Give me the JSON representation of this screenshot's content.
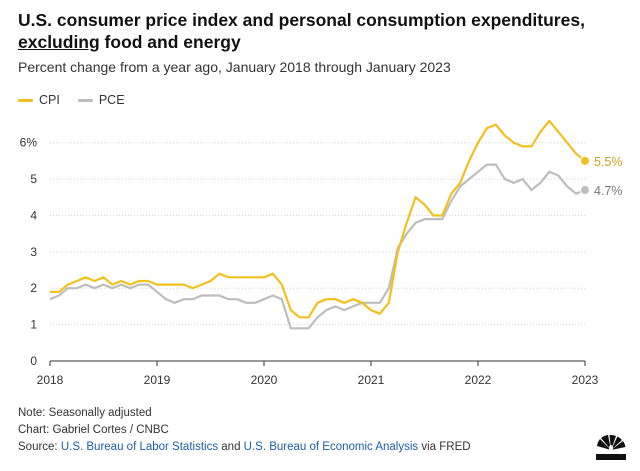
{
  "header": {
    "title_line1": "U.S. consumer price index and personal consumption expenditures,",
    "title_underlined": "excluding",
    "title_rest": " food and energy",
    "subtitle": "Percent change from a year ago, January 2018 through January 2023"
  },
  "colors": {
    "cpi": "#f2c01e",
    "pce": "#bdbdbd",
    "end_label_cpi": "#c9a227",
    "end_label_pce": "#777777",
    "link": "#1a5fa8"
  },
  "chart_data": {
    "type": "line",
    "x": [
      "2018-01",
      "2018-02",
      "2018-03",
      "2018-04",
      "2018-05",
      "2018-06",
      "2018-07",
      "2018-08",
      "2018-09",
      "2018-10",
      "2018-11",
      "2018-12",
      "2019-01",
      "2019-02",
      "2019-03",
      "2019-04",
      "2019-05",
      "2019-06",
      "2019-07",
      "2019-08",
      "2019-09",
      "2019-10",
      "2019-11",
      "2019-12",
      "2020-01",
      "2020-02",
      "2020-03",
      "2020-04",
      "2020-05",
      "2020-06",
      "2020-07",
      "2020-08",
      "2020-09",
      "2020-10",
      "2020-11",
      "2020-12",
      "2021-01",
      "2021-02",
      "2021-03",
      "2021-04",
      "2021-05",
      "2021-06",
      "2021-07",
      "2021-08",
      "2021-09",
      "2021-10",
      "2021-11",
      "2021-12",
      "2022-01",
      "2022-02",
      "2022-03",
      "2022-04",
      "2022-05",
      "2022-06",
      "2022-07",
      "2022-08",
      "2022-09",
      "2022-10",
      "2022-11",
      "2022-12",
      "2023-01"
    ],
    "series": [
      {
        "name": "CPI",
        "values": [
          1.9,
          1.9,
          2.1,
          2.2,
          2.3,
          2.2,
          2.3,
          2.1,
          2.2,
          2.1,
          2.2,
          2.2,
          2.1,
          2.1,
          2.1,
          2.1,
          2.0,
          2.1,
          2.2,
          2.4,
          2.3,
          2.3,
          2.3,
          2.3,
          2.3,
          2.4,
          2.1,
          1.4,
          1.2,
          1.2,
          1.6,
          1.7,
          1.7,
          1.6,
          1.7,
          1.6,
          1.4,
          1.3,
          1.6,
          3.0,
          3.8,
          4.5,
          4.3,
          4.0,
          4.0,
          4.6,
          4.9,
          5.5,
          6.0,
          6.4,
          6.5,
          6.2,
          6.0,
          5.9,
          5.9,
          6.3,
          6.6,
          6.3,
          6.0,
          5.7,
          5.5
        ]
      },
      {
        "name": "PCE",
        "values": [
          1.7,
          1.8,
          2.0,
          2.0,
          2.1,
          2.0,
          2.1,
          2.0,
          2.1,
          2.0,
          2.1,
          2.1,
          1.9,
          1.7,
          1.6,
          1.7,
          1.7,
          1.8,
          1.8,
          1.8,
          1.7,
          1.7,
          1.6,
          1.6,
          1.7,
          1.8,
          1.7,
          0.9,
          0.9,
          0.9,
          1.2,
          1.4,
          1.5,
          1.4,
          1.5,
          1.6,
          1.6,
          1.6,
          2.0,
          3.1,
          3.5,
          3.8,
          3.9,
          3.9,
          3.9,
          4.4,
          4.8,
          5.0,
          5.2,
          5.4,
          5.4,
          5.0,
          4.9,
          5.0,
          4.7,
          4.9,
          5.2,
          5.1,
          4.8,
          4.6,
          4.7
        ]
      }
    ],
    "legend": [
      "CPI",
      "PCE"
    ],
    "end_labels": [
      "5.5%",
      "4.7%"
    ],
    "y_ticks": [
      "0",
      "1",
      "2",
      "3",
      "4",
      "5",
      "6%"
    ],
    "x_ticks": [
      "2018",
      "2019",
      "2020",
      "2021",
      "2022",
      "2023"
    ],
    "ylim": [
      0,
      6.9
    ],
    "grid": "horizontal"
  },
  "footer": {
    "note": "Note: Seasonally adjusted",
    "credit": "Chart: Gabriel Cortes / CNBC",
    "source_prefix": "Source: ",
    "source_bls": "U.S. Bureau of Labor Statistics",
    "source_and": " and ",
    "source_bea": "U.S. Bureau of Economic Analysis",
    "source_suffix": " via FRED"
  },
  "logo": {
    "icon": "cnbc-peacock-icon"
  }
}
